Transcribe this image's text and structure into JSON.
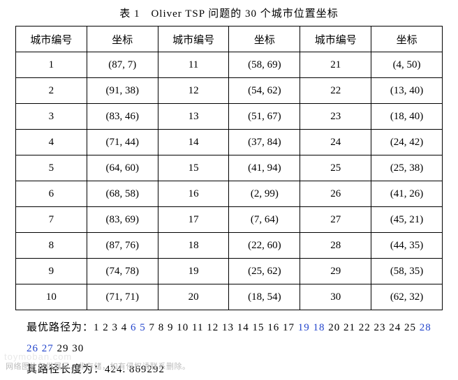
{
  "title": "表 1　Oliver TSP 问题的 30 个城市位置坐标",
  "columns": [
    "城市编号",
    "坐标",
    "城市编号",
    "坐标",
    "城市编号",
    "坐标"
  ],
  "rows": [
    [
      "1",
      "(87, 7)",
      "11",
      "(58, 69)",
      "21",
      "(4, 50)"
    ],
    [
      "2",
      "(91, 38)",
      "12",
      "(54, 62)",
      "22",
      "(13, 40)"
    ],
    [
      "3",
      "(83, 46)",
      "13",
      "(51, 67)",
      "23",
      "(18, 40)"
    ],
    [
      "4",
      "(71, 44)",
      "14",
      "(37, 84)",
      "24",
      "(24, 42)"
    ],
    [
      "5",
      "(64, 60)",
      "15",
      "(41, 94)",
      "25",
      "(25, 38)"
    ],
    [
      "6",
      "(68, 58)",
      "16",
      "(2, 99)",
      "26",
      "(41, 26)"
    ],
    [
      "7",
      "(83, 69)",
      "17",
      "(7, 64)",
      "27",
      "(45, 21)"
    ],
    [
      "8",
      "(87, 76)",
      "18",
      "(22, 60)",
      "28",
      "(44, 35)"
    ],
    [
      "9",
      "(74, 78)",
      "19",
      "(25, 62)",
      "29",
      "(58, 35)"
    ],
    [
      "10",
      "(71, 71)",
      "20",
      "(18, 54)",
      "30",
      "(62, 32)"
    ]
  ],
  "route_label": "最优路径为：",
  "route_segments": [
    {
      "text": "1 2 3 4 ",
      "blue": false
    },
    {
      "text": "6 5 ",
      "blue": true
    },
    {
      "text": "7 8 9 10 11 12 13 14 15 16 17 ",
      "blue": false
    },
    {
      "text": "19 18 ",
      "blue": true
    },
    {
      "text": "20 21 22 23 24 25 ",
      "blue": false
    },
    {
      "text": "28 26 27 ",
      "blue": true
    },
    {
      "text": "29 30",
      "blue": false
    }
  ],
  "length_label": "其路径长度为：",
  "length_value": "424. 869292",
  "watermark": "toymoban.com",
  "footer": "网络图片仅供展示，非存储，如有侵权请联系删除。",
  "colors": {
    "blue": "#2244cc",
    "black": "#000000",
    "footer_gray": "#bbbbbb",
    "watermark_gray": "#e8e8e8",
    "background": "#ffffff"
  },
  "typography": {
    "body_fontsize": 15,
    "footer_fontsize": 11,
    "watermark_fontsize": 13
  }
}
